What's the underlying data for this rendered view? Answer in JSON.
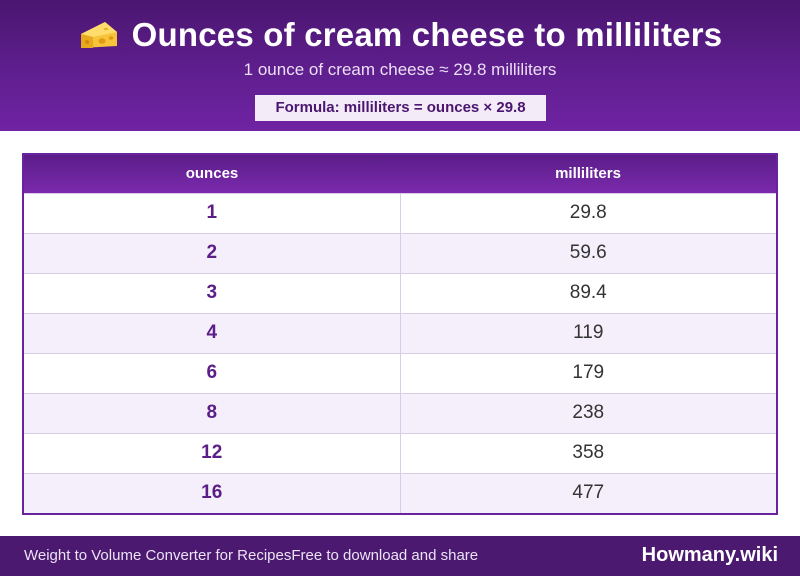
{
  "header": {
    "icon": "cheese-icon",
    "title": "Ounces of cream cheese to milliliters",
    "subtitle": "1 ounce of cream cheese ≈ 29.8 milliliters",
    "formula": "Formula: milliliters = ounces × 29.8"
  },
  "table": {
    "columns": [
      "ounces",
      "milliliters"
    ],
    "rows": [
      [
        "1",
        "29.8"
      ],
      [
        "2",
        "59.6"
      ],
      [
        "3",
        "89.4"
      ],
      [
        "4",
        "119"
      ],
      [
        "6",
        "179"
      ],
      [
        "8",
        "238"
      ],
      [
        "12",
        "358"
      ],
      [
        "16",
        "477"
      ]
    ]
  },
  "footer": {
    "left_text": "Weight to Volume Converter for Recipes",
    "middle_text": "Free to download and share",
    "brand": "Howmany.wiki"
  },
  "colors": {
    "header_dark": "#4a1670",
    "accent": "#6a23a0",
    "row_alt": "#f4effa"
  }
}
